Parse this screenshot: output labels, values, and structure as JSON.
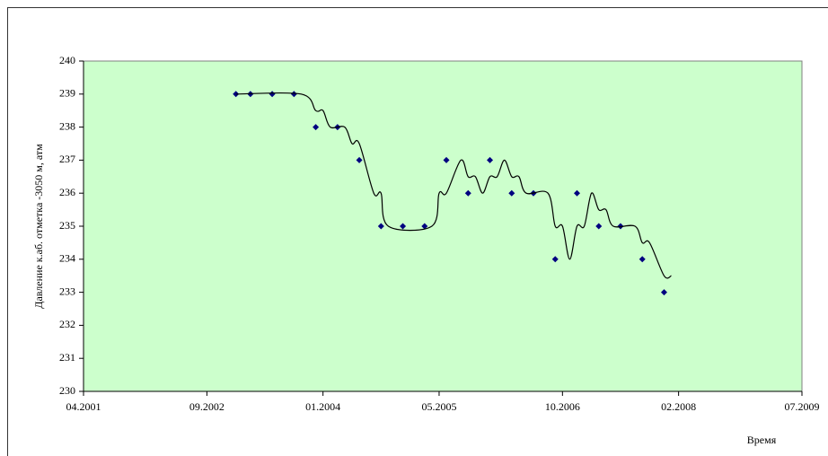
{
  "chart_data": {
    "type": "scatter",
    "y_label": "Давление к.аб. отметка -3050 м, атм",
    "x_label": "Время",
    "xlim": [
      "04.2001",
      "07.2009"
    ],
    "xticks": [
      "04.2001",
      "09.2002",
      "01.2004",
      "05.2005",
      "10.2006",
      "02.2008",
      "07.2009"
    ],
    "ylim": [
      230,
      240
    ],
    "yticks": [
      230,
      231,
      232,
      233,
      234,
      235,
      236,
      237,
      238,
      239,
      240
    ],
    "grid": false,
    "plot_background": "#ccffcc",
    "series": [
      {
        "type": "scatter",
        "color": "#000080",
        "x": [
          "01.2003",
          "03.2003",
          "06.2003",
          "09.2003",
          "12.2003",
          "03.2004",
          "06.2004",
          "09.2004",
          "12.2004",
          "03.2005",
          "06.2005",
          "09.2005",
          "12.2005",
          "03.2006",
          "06.2006",
          "09.2006",
          "12.2006",
          "03.2007",
          "06.2007",
          "09.2007",
          "12.2007"
        ],
        "values": [
          239,
          239,
          239,
          239,
          238,
          238,
          237,
          235,
          235,
          235,
          237,
          236,
          237,
          236,
          236,
          234,
          236,
          235,
          235,
          234,
          233
        ]
      },
      {
        "type": "line",
        "color": "#000000",
        "x": [
          "01.2003",
          "10.2003",
          "12.2003",
          "01.2004",
          "02.2004",
          "04.2004",
          "05.2004",
          "06.2004",
          "08.2004",
          "09.2004",
          "10.2004",
          "04.2005",
          "05.2005",
          "06.2005",
          "08.2005",
          "09.2005",
          "10.2005",
          "11.2005",
          "12.2005",
          "01.2006",
          "02.2006",
          "03.2006",
          "04.2006",
          "05.2006",
          "08.2006",
          "09.2006",
          "10.2006",
          "11.2006",
          "12.2006",
          "01.2007",
          "02.2007",
          "03.2007",
          "04.2007",
          "05.2007",
          "08.2007",
          "09.2007",
          "10.2007",
          "12.2007",
          "01.2008"
        ],
        "values": [
          239,
          239,
          238.5,
          238.5,
          238,
          238,
          237.5,
          237.5,
          236,
          236,
          235,
          235,
          236,
          236,
          237,
          236.5,
          236.5,
          236,
          236.5,
          236.5,
          237,
          236.5,
          236.5,
          236,
          236,
          235,
          235,
          234,
          235,
          235,
          236,
          235.5,
          235.5,
          235,
          235,
          234.5,
          234.5,
          233.5,
          233.5
        ]
      }
    ]
  }
}
